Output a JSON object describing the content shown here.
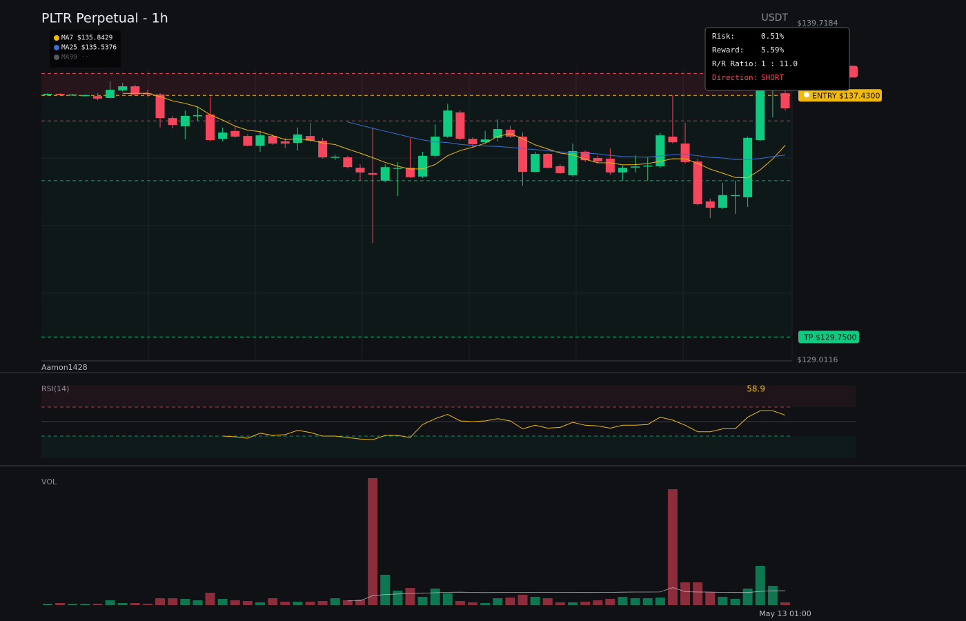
{
  "chart_data": {
    "type": "candlestick",
    "title": "PLTR Perpetual - 1h",
    "currency": "USDT",
    "author": "Aamon1428",
    "ylim": [
      129.0116,
      139.7184
    ],
    "yticks": [
      {
        "value": 139.7184,
        "label": "$139.7184"
      },
      {
        "value": 129.0116,
        "label": "$129.0116"
      }
    ],
    "up_color": "#0ecb81",
    "down_color": "#f6465d",
    "categories": [
      null,
      null,
      null,
      null,
      null,
      null,
      null,
      null,
      null,
      null,
      null,
      null,
      null,
      null,
      null,
      null,
      null,
      null,
      null,
      null,
      null,
      null,
      null,
      null,
      null,
      null,
      null,
      null,
      null,
      null,
      null,
      null,
      null,
      null,
      null,
      null,
      null,
      null,
      null,
      null,
      null,
      null,
      null,
      null,
      null,
      null,
      null,
      null,
      null,
      null,
      null,
      null,
      null,
      null,
      null,
      null,
      null,
      null,
      null,
      "May 13 01:00"
    ],
    "open": [
      137.44,
      137.48,
      137.46,
      137.44,
      137.41,
      137.35,
      137.59,
      137.72,
      137.5,
      137.46,
      136.71,
      136.45,
      136.78,
      136.82,
      136.05,
      136.3,
      136.14,
      135.83,
      136.14,
      135.97,
      135.92,
      136.14,
      135.99,
      135.46,
      135.46,
      135.13,
      134.96,
      134.72,
      135.11,
      135.13,
      134.85,
      135.51,
      136.12,
      136.89,
      136.05,
      135.94,
      136.08,
      136.34,
      136.12,
      135.0,
      135.57,
      135.18,
      134.89,
      135.64,
      135.44,
      135.42,
      134.98,
      135.15,
      135.18,
      135.18,
      136.12,
      135.9,
      135.33,
      134.06,
      133.86,
      134.23,
      134.19,
      136.01,
      137.61,
      137.5
    ],
    "high": [
      137.5,
      137.5,
      137.48,
      137.46,
      137.5,
      137.88,
      137.83,
      137.77,
      137.61,
      137.5,
      136.78,
      136.95,
      137.06,
      137.39,
      136.41,
      136.47,
      136.19,
      136.3,
      136.19,
      136.08,
      136.41,
      136.56,
      136.08,
      135.55,
      135.51,
      135.24,
      136.41,
      135.24,
      135.31,
      136.08,
      135.64,
      136.51,
      137.17,
      136.95,
      136.1,
      136.3,
      136.67,
      136.47,
      136.25,
      135.64,
      135.59,
      135.24,
      135.9,
      135.68,
      135.51,
      135.75,
      135.2,
      135.53,
      135.46,
      136.25,
      137.44,
      136.56,
      135.42,
      134.15,
      134.65,
      134.72,
      136.12,
      137.94,
      138.05,
      137.61
    ],
    "low": [
      137.41,
      137.41,
      137.44,
      137.41,
      137.28,
      137.33,
      137.55,
      137.44,
      137.39,
      136.41,
      136.38,
      136.03,
      136.62,
      135.97,
      135.97,
      136.08,
      135.81,
      135.64,
      135.86,
      135.75,
      135.68,
      135.94,
      135.42,
      135.37,
      135.11,
      134.72,
      132.74,
      134.67,
      134.23,
      134.8,
      134.8,
      135.46,
      136.08,
      136.01,
      135.79,
      135.9,
      135.97,
      136.08,
      134.56,
      134.98,
      135.11,
      134.94,
      134.85,
      135.31,
      135.26,
      134.91,
      134.72,
      134.98,
      134.72,
      135.13,
      135.9,
      135.26,
      133.93,
      133.53,
      133.82,
      133.66,
      133.88,
      135.97,
      136.73,
      136.95
    ],
    "close": [
      137.48,
      137.44,
      137.46,
      137.44,
      137.33,
      137.61,
      137.72,
      137.46,
      137.48,
      136.71,
      136.49,
      136.78,
      136.8,
      136.01,
      136.25,
      136.12,
      135.83,
      136.16,
      135.9,
      135.9,
      136.19,
      135.99,
      135.46,
      135.48,
      135.15,
      134.98,
      134.91,
      135.15,
      135.13,
      134.83,
      135.51,
      136.12,
      136.95,
      136.05,
      135.88,
      136.03,
      136.36,
      136.12,
      135.0,
      135.57,
      135.13,
      134.96,
      135.66,
      135.37,
      135.33,
      134.98,
      135.13,
      135.17,
      135.2,
      136.16,
      135.94,
      135.31,
      133.97,
      133.86,
      134.26,
      134.26,
      136.08,
      137.72,
      137.72,
      137.02
    ],
    "moving_averages": [
      {
        "label": "MA7 $135.8429",
        "period": 7,
        "color": "#f0b90b"
      },
      {
        "label": "MA25 $135.5376",
        "period": 25,
        "color": "#3b6fd8"
      },
      {
        "label": "MA99 --",
        "period": 99,
        "color": "#555a62"
      }
    ],
    "levels": [
      {
        "value": 138.13,
        "color": "#f6465d"
      },
      {
        "value": 137.43,
        "label": "ENTRY $137.4300",
        "color": "#f0b90b"
      },
      {
        "value": 129.75,
        "label": "TP $129.7500",
        "color": "#0ecb81"
      }
    ],
    "lines": [
      {
        "value": 136.62,
        "color": "#f6465d"
      },
      {
        "value": 134.72,
        "color": "#0ecb81"
      }
    ],
    "tooltip": [
      [
        "Risk:",
        "0.51%"
      ],
      [
        "Reward:",
        "5.59%"
      ],
      [
        "R/R Ratio:",
        "1 : 11.0"
      ],
      [
        "Direction:",
        "SHORT"
      ]
    ],
    "rsi": {
      "label": "RSI(14)",
      "ylim": [
        0,
        100
      ],
      "levels": [
        70,
        50,
        30
      ],
      "color": "#f0b90b",
      "values": [
        null,
        null,
        null,
        null,
        null,
        null,
        null,
        null,
        null,
        null,
        null,
        null,
        null,
        null,
        30,
        29,
        27,
        34,
        31,
        32,
        38,
        35,
        30,
        30,
        28,
        26,
        25,
        31,
        31,
        28,
        46,
        54,
        60,
        51,
        50,
        51,
        54,
        51,
        40,
        45,
        41,
        42,
        49,
        45,
        44,
        41,
        45,
        45,
        46,
        56,
        52,
        45,
        36,
        36,
        40,
        40,
        56,
        65,
        65,
        58.9
      ]
    },
    "volume": {
      "label": "VOL",
      "ylim": [
        0,
        190
      ],
      "ma_period": 25,
      "values": [
        2,
        3,
        2,
        2,
        2,
        7,
        3,
        3,
        2,
        10,
        10,
        9,
        7,
        18,
        9,
        7,
        6,
        4,
        10,
        5,
        5,
        5,
        6,
        10,
        7,
        8,
        184,
        44,
        21,
        25,
        12,
        24,
        17,
        6,
        4,
        3,
        10,
        11,
        15,
        12,
        10,
        4,
        4,
        5,
        7,
        9,
        12,
        10,
        10,
        11,
        168,
        33,
        33,
        19,
        12,
        9,
        24,
        57,
        28,
        4
      ]
    }
  }
}
